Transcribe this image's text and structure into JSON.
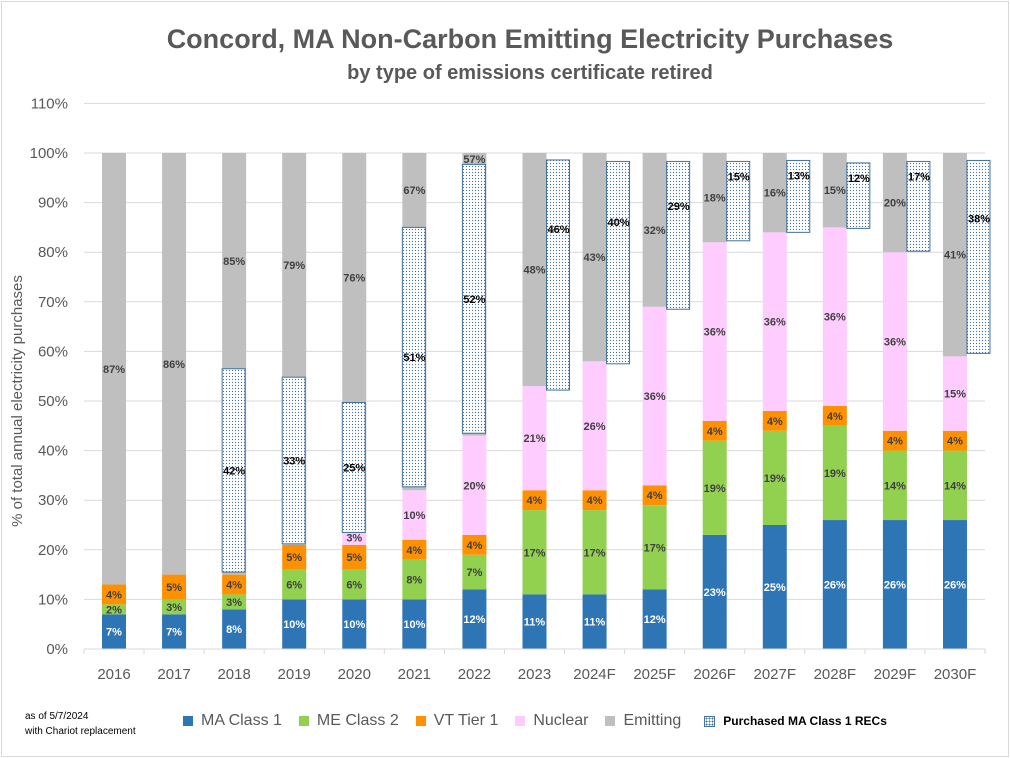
{
  "chart_data": {
    "type": "bar",
    "stacked": true,
    "title": "Concord, MA Non-Carbon Emitting Electricity Purchases",
    "subtitle": "by type of emissions certificate retired",
    "ylabel": "% of total annual electricity purchases",
    "xlabel": "",
    "ylim": [
      0,
      110
    ],
    "yticks": [
      "0%",
      "10%",
      "20%",
      "30%",
      "40%",
      "50%",
      "60%",
      "70%",
      "80%",
      "90%",
      "100%",
      "110%"
    ],
    "grid": true,
    "legend_position": "bottom",
    "categories": [
      "2016",
      "2017",
      "2018",
      "2019",
      "2020",
      "2021",
      "2022",
      "2023",
      "2024F",
      "2025F",
      "2026F",
      "2027F",
      "2028F",
      "2029F",
      "2030F"
    ],
    "series": [
      {
        "name": "MA Class 1",
        "color": "#2e75b6",
        "label_color": "#ffffff",
        "values": [
          7,
          7,
          8,
          10,
          10,
          10,
          12,
          11,
          11,
          12,
          23,
          25,
          26,
          26,
          26
        ]
      },
      {
        "name": "ME Class 2",
        "color": "#92d050",
        "label_color": "#404040",
        "values": [
          2,
          3,
          3,
          6,
          6,
          8,
          7,
          17,
          17,
          17,
          19,
          19,
          19,
          14,
          14
        ]
      },
      {
        "name": "VT Tier 1",
        "color": "#ff9100",
        "label_color": "#404040",
        "values": [
          4,
          5,
          4,
          5,
          5,
          4,
          4,
          4,
          4,
          4,
          4,
          4,
          4,
          4,
          4
        ]
      },
      {
        "name": "Nuclear",
        "color": "#ffccff",
        "label_color": "#404040",
        "values": [
          0,
          0,
          0,
          0,
          3,
          10,
          20,
          21,
          26,
          36,
          36,
          36,
          36,
          36,
          15
        ]
      },
      {
        "name": "Emitting",
        "color": "#bfbfbf",
        "label_color": "#404040",
        "values": [
          87,
          86,
          85,
          79,
          76,
          67,
          57,
          48,
          43,
          32,
          18,
          16,
          15,
          20,
          41
        ]
      }
    ],
    "purchased_recs": {
      "name": "Purchased MA Class 1 RECs",
      "color": "#41719c",
      "values": [
        null,
        null,
        42,
        33,
        25,
        51,
        52,
        46,
        40,
        29,
        15,
        13,
        12,
        17,
        38
      ],
      "range_pct": [
        null,
        null,
        [
          15.5,
          56.5
        ],
        [
          21.2,
          54.8
        ],
        [
          23.5,
          49.7
        ],
        [
          32.7,
          85.0
        ],
        [
          43.5,
          97.7
        ],
        [
          52.2,
          98.6
        ],
        [
          57.5,
          98.3
        ],
        [
          68.5,
          98.3
        ],
        [
          82.3,
          98.3
        ],
        [
          84.0,
          98.5
        ],
        [
          84.8,
          98.0
        ],
        [
          80.2,
          98.3
        ],
        [
          59.6,
          98.5
        ]
      ],
      "beside_bar_from": "2023"
    }
  },
  "note": {
    "line1": "as of 5/7/2024",
    "line2": "with Chariot replacement"
  }
}
